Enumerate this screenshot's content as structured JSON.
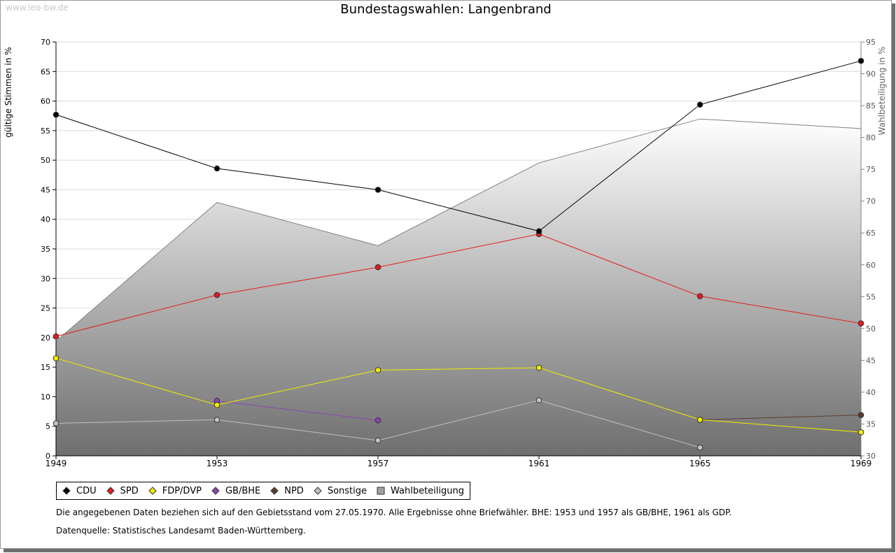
{
  "watermark": "www.leo-bw.de",
  "chart_data": {
    "type": "line",
    "title": "Bundestagswahlen: Langenbrand",
    "x": [
      "1949",
      "1953",
      "1957",
      "1961",
      "1965",
      "1969"
    ],
    "ylabel": "gültige Stimmen in %",
    "ylabel_right": "Wahlbeteiligung in %",
    "ylim": [
      0,
      70
    ],
    "ylim_right": [
      30,
      95
    ],
    "yticks": [
      "0",
      "5",
      "10",
      "15",
      "20",
      "25",
      "30",
      "35",
      "40",
      "45",
      "50",
      "55",
      "60",
      "65",
      "70"
    ],
    "yticks_right": [
      "30",
      "35",
      "40",
      "45",
      "50",
      "55",
      "60",
      "65",
      "70",
      "75",
      "80",
      "85",
      "90",
      "95"
    ],
    "grid": true,
    "legend_position": "bottom",
    "series": [
      {
        "name": "CDU",
        "color": "#000000",
        "values": [
          57.7,
          48.6,
          45.0,
          38.0,
          59.4,
          66.8
        ]
      },
      {
        "name": "SPD",
        "color": "#e31a1c",
        "values": [
          20.2,
          27.2,
          31.9,
          37.5,
          27.0,
          22.4
        ]
      },
      {
        "name": "FDP/DVP",
        "color": "#f2ee00",
        "values": [
          16.5,
          8.6,
          14.5,
          14.9,
          6.1,
          4.0
        ]
      },
      {
        "name": "GB/BHE",
        "color": "#8e44ad",
        "values": [
          null,
          9.3,
          6.0,
          null,
          null,
          null
        ]
      },
      {
        "name": "NPD",
        "color": "#5a3c2c",
        "values": [
          null,
          null,
          null,
          null,
          6.1,
          6.9
        ]
      },
      {
        "name": "Sonstige",
        "color": "#c0c0c0",
        "values": [
          5.5,
          6.1,
          2.6,
          9.4,
          1.4,
          null
        ]
      }
    ],
    "area": {
      "name": "Wahlbeteiligung",
      "axis": "right",
      "values": [
        48.0,
        69.8,
        63.0,
        76.0,
        82.9,
        81.4
      ]
    }
  },
  "legend": {
    "items": [
      {
        "label": "CDU",
        "marker": "diamond",
        "color": "#000000"
      },
      {
        "label": "SPD",
        "marker": "diamond",
        "color": "#e31a1c"
      },
      {
        "label": "FDP/DVP",
        "marker": "diamond",
        "color": "#f2ee00"
      },
      {
        "label": "GB/BHE",
        "marker": "diamond",
        "color": "#8e44ad"
      },
      {
        "label": "NPD",
        "marker": "diamond",
        "color": "#5a3c2c"
      },
      {
        "label": "Sonstige",
        "marker": "diamond",
        "color": "#c0c0c0"
      },
      {
        "label": "Wahlbeteiligung",
        "marker": "square",
        "color": "#a0a0a0"
      }
    ]
  },
  "notes": {
    "data_note": "Die angegebenen Daten beziehen sich auf den Gebietsstand vom 27.05.1970. Alle Ergebnisse ohne Briefwähler. BHE: 1953 und 1957 als GB/BHE, 1961 als GDP.",
    "source": "Datenquelle: Statistisches Landesamt Baden-Württemberg."
  }
}
